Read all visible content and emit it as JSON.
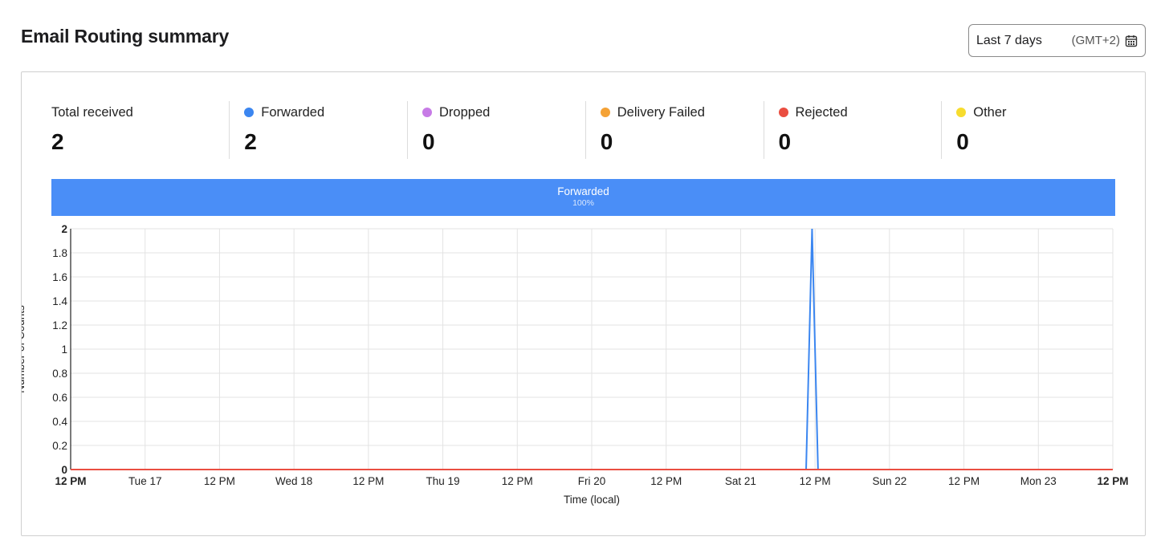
{
  "header": {
    "title": "Email Routing summary",
    "date_range": "Last 7 days",
    "timezone": "(GMT+2)",
    "calendar_icon": "calendar-icon"
  },
  "stats": [
    {
      "label": "Total received",
      "value": "2",
      "color": ""
    },
    {
      "label": "Forwarded",
      "value": "2",
      "color": "#3b86f0"
    },
    {
      "label": "Dropped",
      "value": "0",
      "color": "#c77be6"
    },
    {
      "label": "Delivery Failed",
      "value": "0",
      "color": "#f4a236"
    },
    {
      "label": "Rejected",
      "value": "0",
      "color": "#ea4e41"
    },
    {
      "label": "Other",
      "value": "0",
      "color": "#f7dc2e"
    }
  ],
  "distribution_bar": {
    "label": "Forwarded",
    "percent": "100%",
    "fraction": 1.0,
    "color": "#4a8ef7"
  },
  "chart_data": {
    "type": "line",
    "xlabel": "Time (local)",
    "ylabel": "Number of Counts",
    "ylim": [
      0,
      2
    ],
    "y_ticks": [
      "0",
      "0.2",
      "0.4",
      "0.6",
      "0.8",
      "1",
      "1.2",
      "1.4",
      "1.6",
      "1.8",
      "2"
    ],
    "x_ticks": [
      "12 PM",
      "Tue 17",
      "12 PM",
      "Wed 18",
      "12 PM",
      "Thu 19",
      "12 PM",
      "Fri 20",
      "12 PM",
      "Sat 21",
      "12 PM",
      "Sun 22",
      "12 PM",
      "Mon 23",
      "12 PM"
    ],
    "x_tick_bold": [
      true,
      false,
      false,
      false,
      false,
      false,
      false,
      false,
      false,
      false,
      false,
      false,
      false,
      false,
      true
    ],
    "grid": true,
    "series": [
      {
        "name": "Forwarded",
        "color": "#3b86f0",
        "x": [
          0,
          9.88,
          9.96,
          10.04,
          14
        ],
        "values": [
          0,
          0,
          2,
          0,
          0
        ]
      },
      {
        "name": "Rejected",
        "color": "#ea4e41",
        "x": [
          0,
          14
        ],
        "values": [
          0,
          0
        ]
      }
    ]
  }
}
